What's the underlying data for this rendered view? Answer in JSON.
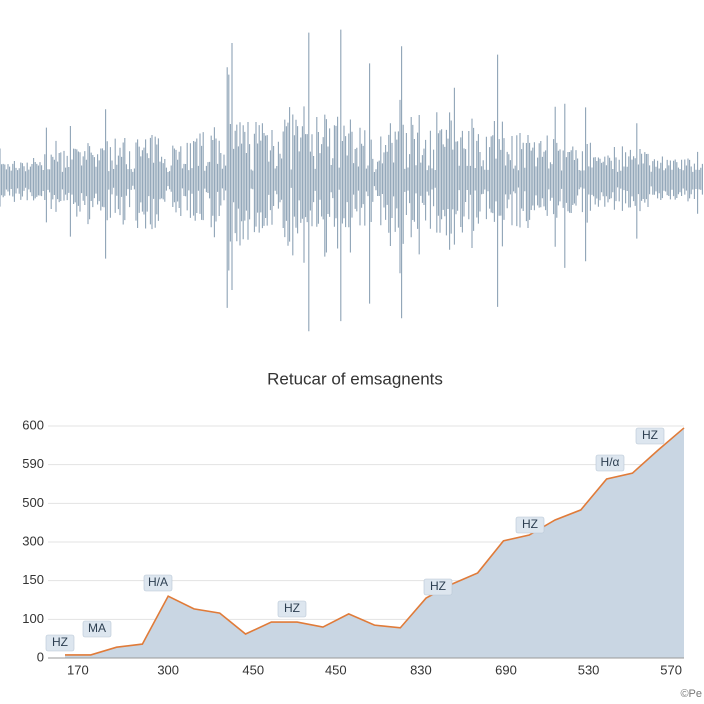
{
  "chart_data": {
    "type": "area",
    "title": "Retucar of emsagnents",
    "x": [
      0,
      1,
      2,
      3,
      4,
      5,
      6,
      7,
      8,
      9,
      10,
      11,
      12,
      13,
      14,
      15,
      16,
      17,
      18,
      19,
      20,
      21,
      22,
      23,
      24
    ],
    "values": [
      8,
      8,
      28,
      36,
      160,
      127,
      116,
      62,
      93,
      93,
      80,
      114,
      85,
      78,
      155,
      191,
      220,
      303,
      318,
      357,
      383,
      463,
      478,
      538,
      595
    ],
    "line_color": "#e07b39",
    "fill_color": "#c9d6e3",
    "xlim": [
      0,
      24
    ],
    "xticks": [
      {
        "value": 0.5,
        "label": "170"
      },
      {
        "value": 4,
        "label": "300"
      },
      {
        "value": 7.3,
        "label": "450"
      },
      {
        "value": 10.5,
        "label": "450"
      },
      {
        "value": 13.8,
        "label": "830"
      },
      {
        "value": 17.1,
        "label": "690"
      },
      {
        "value": 20.3,
        "label": "530"
      },
      {
        "value": 23.5,
        "label": "570"
      }
    ],
    "ylim": [
      0,
      600
    ],
    "yticks": [
      0,
      100,
      {
        "value": 200,
        "label": "150"
      },
      {
        "value": 300,
        "label": "300"
      },
      {
        "value": 400,
        "label": "500"
      },
      {
        "value": 500,
        "label": "590"
      },
      {
        "value": 600,
        "label": "600"
      }
    ],
    "grid": true,
    "annotations": [
      "HZ",
      "MA",
      "H/A",
      "HZ",
      "HZ",
      "HZ",
      "H/α",
      "HZ"
    ],
    "watermark": "©Pe"
  }
}
